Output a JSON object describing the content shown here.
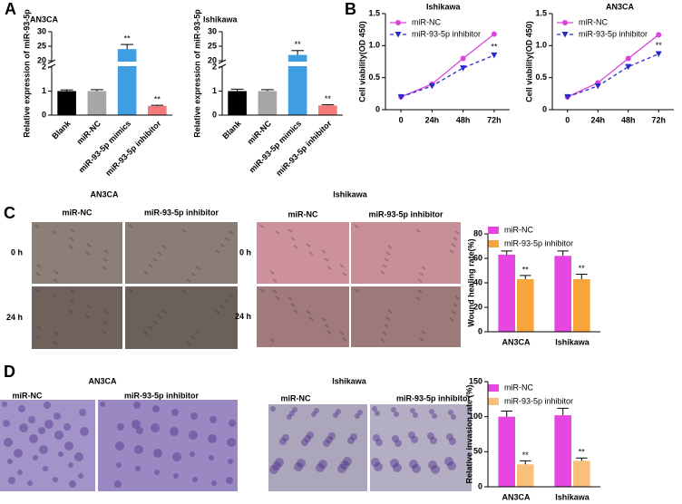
{
  "panel_labels": [
    "A",
    "B",
    "C",
    "D"
  ],
  "wound_images": [
    {
      "title": "AN3CA",
      "columns": [
        "miR-NC",
        "miR-93-5p inhibitor"
      ],
      "rows": [
        "0 h",
        "24 h"
      ]
    },
    {
      "title": "Ishikawa",
      "columns": [
        "miR-NC",
        "miR-93-5p inhibitor"
      ],
      "rows": [
        "0 h",
        "24 h"
      ]
    }
  ],
  "invasion_images": [
    {
      "title": "AN3CA",
      "columns": [
        "miR-NC",
        "miR-93-5p inhibitor"
      ]
    },
    {
      "title": "Ishikawa",
      "columns": [
        "miR-NC",
        "miR-93-5p inhibitor"
      ]
    }
  ],
  "chart_data": [
    {
      "type": "bar",
      "title": "AN3CA",
      "y_label": "Relative expression of miR-93-5p",
      "categories": [
        "Blank",
        "miR-NC",
        "miR-93-5p mimics",
        "miR-93-5p inhibitor"
      ],
      "values": [
        1,
        1,
        24,
        0.38
      ],
      "errors": [
        0.05,
        0.06,
        1.6,
        0.03
      ],
      "colors": [
        "#000000",
        "#a6a6a6",
        "#3f9de2",
        "#f27a7a"
      ],
      "annotations": [
        null,
        null,
        "**",
        "**"
      ],
      "ylim": [
        0,
        30
      ],
      "y_break": [
        2,
        20
      ],
      "yticks": [
        0,
        1,
        2,
        20,
        25,
        30
      ]
    },
    {
      "type": "bar",
      "title": "Ishikawa",
      "y_label": "Relative expression of miR-93-5p",
      "categories": [
        "Blank",
        "miR-NC",
        "miR-93-5p mimics",
        "miR-93-5p inhibitor"
      ],
      "values": [
        1,
        1,
        22,
        0.4
      ],
      "errors": [
        0.08,
        0.06,
        1.5,
        0.03
      ],
      "colors": [
        "#000000",
        "#a6a6a6",
        "#3f9de2",
        "#f27a7a"
      ],
      "annotations": [
        null,
        null,
        "**",
        "**"
      ],
      "ylim": [
        0,
        30
      ],
      "y_break": [
        2,
        20
      ],
      "yticks": [
        0,
        1,
        2,
        20,
        25,
        30
      ]
    },
    {
      "type": "line",
      "title": "Ishikawa",
      "y_label": "Cell viability(OD 450)",
      "categories": [
        "0",
        "24h",
        "48h",
        "72h"
      ],
      "series": [
        {
          "name": "miR-NC",
          "color": "#d946d9",
          "marker": "circle",
          "values": [
            0.2,
            0.4,
            0.8,
            1.18
          ]
        },
        {
          "name": "miR-93-5p inhibitor",
          "color": "#2a2acb",
          "marker": "triangle-down",
          "dashed": true,
          "values": [
            0.2,
            0.37,
            0.65,
            0.85
          ],
          "annotations": [
            null,
            null,
            null,
            "**"
          ]
        }
      ],
      "ylim": [
        0,
        1.5
      ],
      "yticks": [
        0,
        0.5,
        {
          "value": 1,
          "label": "1.0"
        },
        1.5
      ]
    },
    {
      "type": "line",
      "title": "AN3CA",
      "y_label": "Cell viability(OD 450)",
      "categories": [
        "0",
        "24h",
        "48h",
        "72h"
      ],
      "series": [
        {
          "name": "miR-NC",
          "color": "#d946d9",
          "marker": "circle",
          "values": [
            0.2,
            0.42,
            0.8,
            1.17
          ]
        },
        {
          "name": "miR-93-5p inhibitor",
          "color": "#2a2acb",
          "marker": "triangle-down",
          "dashed": true,
          "values": [
            0.2,
            0.37,
            0.67,
            0.87
          ],
          "annotations": [
            null,
            null,
            null,
            "**"
          ]
        }
      ],
      "ylim": [
        0,
        1.5
      ],
      "yticks": [
        0,
        0.5,
        {
          "value": 1,
          "label": "1.0"
        },
        1.5
      ]
    },
    {
      "type": "bar",
      "y_label": "Wound healing rate(%)",
      "categories": [
        "AN3CA",
        "Ishikawa"
      ],
      "series": [
        {
          "name": "miR-NC",
          "color": "#e547e0",
          "values": [
            63,
            62
          ],
          "errors": [
            3,
            4
          ]
        },
        {
          "name": "miR-93-5p inhibitor",
          "color": "#f7a43b",
          "values": [
            43,
            43
          ],
          "errors": [
            3,
            4
          ],
          "annotations": [
            "**",
            "**"
          ]
        }
      ],
      "ylim": [
        0,
        80
      ],
      "yticks": [
        0,
        20,
        40,
        60,
        80
      ]
    },
    {
      "type": "bar",
      "y_label": "Relative invasion rate (%)",
      "categories": [
        "AN3CA",
        "Ishikawa"
      ],
      "series": [
        {
          "name": "miR-NC",
          "color": "#e547e0",
          "values": [
            100,
            102
          ],
          "errors": [
            8,
            10
          ]
        },
        {
          "name": "miR-93-5p inhibitor",
          "color": "#f9c07c",
          "values": [
            32,
            37
          ],
          "errors": [
            5,
            4
          ],
          "annotations": [
            "**",
            "**"
          ]
        }
      ],
      "ylim": [
        0,
        150
      ],
      "yticks": [
        0,
        50,
        100,
        150
      ]
    }
  ]
}
